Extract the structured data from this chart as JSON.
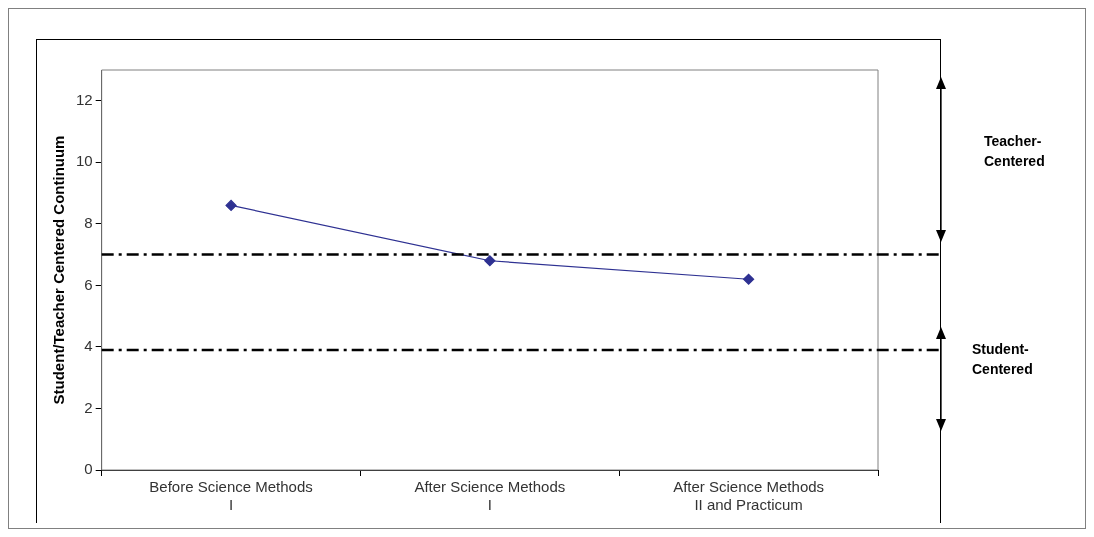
{
  "chart_data": {
    "type": "line",
    "ylabel": "Student/Teacher Centered Continuum",
    "categories": [
      "Before Science Methods I",
      "After Science Methods I",
      "After Science Methods II and Practicum"
    ],
    "series": [
      {
        "color": "#2e3192",
        "values": [
          8.6,
          6.8,
          6.2
        ]
      }
    ],
    "ylim": [
      0,
      13
    ],
    "yticks": [
      0,
      2,
      4,
      6,
      8,
      10,
      12
    ],
    "grid": false,
    "legend": false,
    "marker": "diamond",
    "line_style": "solid",
    "ref_lines": [
      {
        "axis": "y",
        "value": 7,
        "color": "#000000",
        "line_style": "dashdot"
      },
      {
        "axis": "y",
        "value": 3.9,
        "color": "#000000",
        "line_style": "dashdot"
      }
    ],
    "annotations": [
      "Teacher-Centered",
      "Student-Centered"
    ]
  }
}
